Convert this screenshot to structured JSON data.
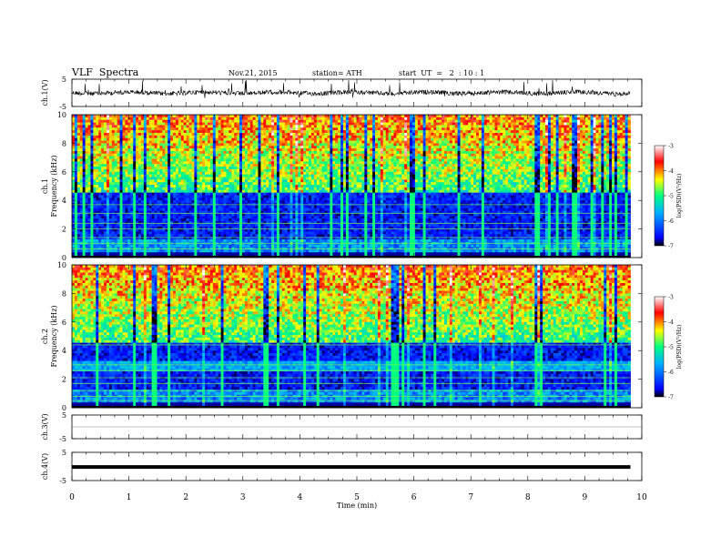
{
  "header": {
    "title": "VLF  Spectra",
    "date": "Nov.21, 2015",
    "station": "station= ATH",
    "start": "start  UT  =   2  : 10 : 1"
  },
  "chart_data": [
    {
      "panel": "ch1-waveform",
      "type": "line",
      "ylabel": "ch.1(V)",
      "ylim": [
        -5,
        5
      ],
      "y_ticks": [
        "5",
        "-5"
      ],
      "xlim": [
        0,
        10
      ],
      "trace_mean": 0,
      "trace_extent_min": 9.8
    },
    {
      "panel": "ch1-spectrogram",
      "type": "heatmap",
      "ylabel": "ch.1\nFrequency  (kHz)",
      "ylim": [
        0,
        10
      ],
      "y_ticks": [
        "0",
        "2",
        "4",
        "6",
        "8",
        "10"
      ],
      "xlim": [
        0,
        10
      ],
      "data_extent_min": 9.8,
      "colorbar": {
        "label": "log(PSD)(V²/Hz)",
        "range": [
          -7,
          -3
        ],
        "ticks": [
          "-3",
          "-4",
          "-5",
          "-6",
          "-7"
        ]
      }
    },
    {
      "panel": "ch2-spectrogram",
      "type": "heatmap",
      "ylabel": "ch.2\nFrequency  (kHz)",
      "ylim": [
        0,
        10
      ],
      "y_ticks": [
        "0",
        "2",
        "4",
        "6",
        "8",
        "10"
      ],
      "xlim": [
        0,
        10
      ],
      "data_extent_min": 9.8,
      "colorbar": {
        "label": "log(PSD)(V²/Hz)",
        "range": [
          -7,
          -3
        ],
        "ticks": [
          "-3",
          "-4",
          "-5",
          "-6",
          "-7"
        ]
      }
    },
    {
      "panel": "ch3-waveform",
      "type": "line",
      "ylabel": "ch.3(V)",
      "ylim": [
        -5,
        5
      ],
      "y_ticks": [
        "5",
        "-5"
      ],
      "xlim": [
        0,
        10
      ],
      "trace_mean": 0
    },
    {
      "panel": "ch4-waveform",
      "type": "line",
      "ylabel": "ch.4(V)",
      "ylim": [
        -5,
        5
      ],
      "y_ticks": [
        "5",
        "-5"
      ],
      "xlim": [
        0,
        10
      ],
      "trace_mean": -0.2,
      "trace_extent_min": 9.8
    }
  ],
  "x_axis": {
    "label": "Time  (min)",
    "ticks": [
      "0",
      "1",
      "2",
      "3",
      "4",
      "5",
      "6",
      "7",
      "8",
      "9",
      "10"
    ]
  },
  "colors": {
    "colormap": [
      "#000000",
      "#0000ff",
      "#00b0ff",
      "#00ff80",
      "#ffff00",
      "#ff0000",
      "#ffffff"
    ],
    "trace": "#000000"
  }
}
